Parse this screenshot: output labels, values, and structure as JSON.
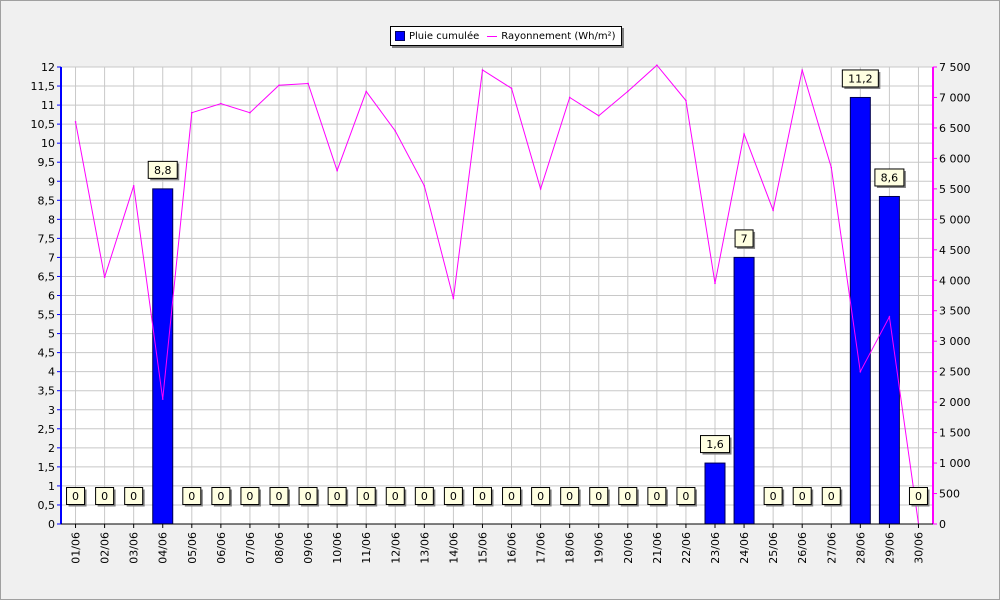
{
  "chart_data": {
    "type": "bar",
    "title": "",
    "categories": [
      "01/06",
      "02/06",
      "03/06",
      "04/06",
      "05/06",
      "06/06",
      "07/06",
      "08/06",
      "09/06",
      "10/06",
      "11/06",
      "12/06",
      "13/06",
      "14/06",
      "15/06",
      "16/06",
      "17/06",
      "18/06",
      "19/06",
      "20/06",
      "21/06",
      "22/06",
      "23/06",
      "24/06",
      "25/06",
      "26/06",
      "27/06",
      "28/06",
      "29/06",
      "30/06"
    ],
    "series": [
      {
        "name": "Pluie cumulée",
        "type": "bar",
        "axis": "left",
        "color": "#0000ff",
        "values": [
          0,
          0,
          0,
          8.8,
          0,
          0,
          0,
          0,
          0,
          0,
          0,
          0,
          0,
          0,
          0,
          0,
          0,
          0,
          0,
          0,
          0,
          0,
          1.6,
          7,
          0,
          0,
          0,
          11.2,
          8.6,
          0
        ],
        "value_labels": [
          "0",
          "0",
          "0",
          "8,8",
          "0",
          "0",
          "0",
          "0",
          "0",
          "0",
          "0",
          "0",
          "0",
          "0",
          "0",
          "0",
          "0",
          "0",
          "0",
          "0",
          "0",
          "0",
          "1,6",
          "7",
          "0",
          "0",
          "0",
          "11,2",
          "8,6",
          "0"
        ]
      },
      {
        "name": "Rayonnement (Wh/m²)",
        "type": "line",
        "axis": "right",
        "color": "#ff00ff",
        "values": [
          6600,
          4050,
          5550,
          2050,
          6750,
          6900,
          6750,
          7200,
          7230,
          5800,
          7100,
          6450,
          5550,
          3700,
          7450,
          7150,
          5500,
          7000,
          6700,
          7100,
          7530,
          6950,
          3950,
          6400,
          5150,
          7450,
          5850,
          2500,
          3400,
          0
        ]
      }
    ],
    "y_left": {
      "ylim": [
        0,
        12
      ],
      "ticks": [
        "0",
        "0,5",
        "1",
        "1,5",
        "2",
        "2,5",
        "3",
        "3,5",
        "4",
        "4,5",
        "5",
        "5,5",
        "6",
        "6,5",
        "7",
        "7,5",
        "8",
        "8,5",
        "9",
        "9,5",
        "10",
        "10,5",
        "11",
        "11,5",
        "12"
      ]
    },
    "y_right": {
      "ylim": [
        0,
        7500
      ],
      "ticks": [
        "0",
        "500",
        "1 000",
        "1 500",
        "2 000",
        "2 500",
        "3 000",
        "3 500",
        "4 000",
        "4 500",
        "5 000",
        "5 500",
        "6 000",
        "6 500",
        "7 000",
        "7 500"
      ]
    },
    "grid": true,
    "legend_position": "top-center"
  }
}
